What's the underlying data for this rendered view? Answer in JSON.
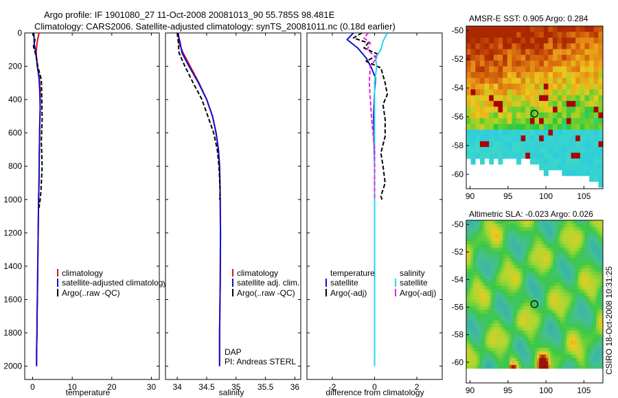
{
  "header": {
    "line1": "Argo profile: IF 1901080_27 11-Oct-2008 20081013_90 55.785S 98.481E",
    "line2": "Climatology: CARS2006. Satellite-adjusted climatology: synTS_20081011.nc (0.18d earlier)"
  },
  "timestamp": "CSIRO 18-Oct-2008 10:31:25",
  "colors": {
    "climatology": "#e01010",
    "satellite": "#1010d0",
    "argo": "#000000",
    "cyan": "#20d8e8",
    "magenta": "#e020e0"
  },
  "chart_data": [
    {
      "type": "line",
      "id": "temperature",
      "xlabel": "temperature",
      "ylabel": "",
      "xlim": [
        -2,
        32
      ],
      "ylim": [
        2080,
        0
      ],
      "xticks": [
        0,
        10,
        20,
        30
      ],
      "yticks": [
        0,
        200,
        400,
        600,
        800,
        1000,
        1200,
        1400,
        1600,
        1800,
        2000
      ],
      "legend": [
        "climatology",
        "satellite-adjusted climatology",
        "Argo(..raw -QC)"
      ],
      "series": [
        {
          "name": "climatology",
          "color": "#e01010",
          "dash": "",
          "x": [
            1.6,
            1.1,
            0.9,
            1.2,
            1.7,
            1.9,
            1.9,
            1.8,
            1.7,
            1.6,
            1.5,
            1.4,
            1.3,
            1.2,
            1.1,
            1.1,
            1.0,
            1.0
          ],
          "y": [
            0,
            60,
            120,
            200,
            270,
            350,
            450,
            550,
            700,
            900,
            1000,
            1200,
            1400,
            1600,
            1700,
            1800,
            1900,
            2000
          ]
        },
        {
          "name": "satellite",
          "color": "#1010d0",
          "dash": "",
          "x": [
            0.3,
            0.4,
            0.8,
            1.2,
            1.6,
            1.8,
            1.9,
            1.8,
            1.7,
            1.6,
            1.5,
            1.4,
            1.3,
            1.2,
            1.1,
            1.1,
            1.0,
            1.0
          ],
          "y": [
            0,
            60,
            120,
            200,
            270,
            350,
            450,
            550,
            700,
            900,
            1000,
            1200,
            1400,
            1600,
            1700,
            1800,
            1900,
            2000
          ]
        },
        {
          "name": "Argo",
          "color": "#000000",
          "dash": "6,3",
          "x": [
            0.1,
            0.6,
            0.2,
            0.9,
            1.3,
            2.2,
            2.3,
            2.4,
            2.2,
            2.4,
            2.1,
            1.9,
            1.6
          ],
          "y": [
            0,
            40,
            80,
            140,
            200,
            280,
            380,
            520,
            650,
            800,
            950,
            1000,
            1050
          ]
        }
      ],
      "annotations": []
    },
    {
      "type": "line",
      "id": "salinity",
      "xlabel": "salinity",
      "ylabel": "",
      "xlim": [
        33.8,
        36.1
      ],
      "ylim": [
        2080,
        0
      ],
      "xticks": [
        34,
        34.5,
        35,
        35.5,
        36
      ],
      "legend": [
        "climatology",
        "satellite adj. clim.",
        "Argo(..raw -QC)"
      ],
      "series": [
        {
          "name": "climatology",
          "color": "#e01010",
          "dash": "",
          "x": [
            34.02,
            34.03,
            34.1,
            34.22,
            34.37,
            34.5,
            34.6,
            34.66,
            34.7,
            34.72,
            34.73,
            34.735,
            34.73,
            34.72,
            34.72
          ],
          "y": [
            0,
            60,
            120,
            200,
            300,
            400,
            500,
            600,
            700,
            800,
            1000,
            1200,
            1500,
            1800,
            2000
          ]
        },
        {
          "name": "satellite",
          "color": "#1010d0",
          "dash": "",
          "x": [
            34.01,
            34.05,
            34.08,
            34.2,
            34.36,
            34.5,
            34.6,
            34.66,
            34.7,
            34.72,
            34.73,
            34.735,
            34.73,
            34.72,
            34.72
          ],
          "y": [
            0,
            60,
            120,
            200,
            300,
            400,
            500,
            600,
            700,
            800,
            1000,
            1200,
            1500,
            1800,
            2000
          ]
        },
        {
          "name": "Argo",
          "color": "#000000",
          "dash": "6,3",
          "x": [
            34.0,
            34.02,
            34.03,
            34.13,
            34.27,
            34.42,
            34.52,
            34.62,
            34.68,
            34.71,
            34.73,
            34.72
          ],
          "y": [
            0,
            60,
            120,
            200,
            300,
            400,
            500,
            600,
            700,
            800,
            950,
            1000
          ]
        }
      ],
      "annotations": [
        "DAP",
        "PI: Andreas STERL"
      ]
    },
    {
      "type": "line",
      "id": "difference",
      "xlabel": "difference from climatology",
      "ylabel": "",
      "xlim": [
        -3.2,
        3.2
      ],
      "ylim": [
        2080,
        0
      ],
      "xticks": [
        -2,
        0,
        2
      ],
      "legend_groups": [
        {
          "title": "temperature",
          "items": [
            "satellite",
            "Argo(-adj)"
          ]
        },
        {
          "title": "salinity",
          "items": [
            "satellite",
            "Argo(-adj)"
          ]
        }
      ],
      "series": [
        {
          "name": "temperature satellite",
          "color": "#1010d0",
          "dash": "",
          "x": [
            -1.0,
            -1.3,
            -0.8,
            -0.4,
            -0.15,
            0.05,
            0.0,
            -0.05,
            0.0,
            0.0,
            0.0,
            0.0
          ],
          "y": [
            0,
            40,
            90,
            150,
            210,
            270,
            350,
            500,
            800,
            1200,
            1600,
            2000
          ]
        },
        {
          "name": "temperature Argo(-adj)",
          "color": "#000000",
          "dash": "6,3",
          "x": [
            -0.6,
            -1.0,
            -0.3,
            -0.5,
            0.2,
            -0.4,
            0.3,
            0.5,
            0.6,
            0.4,
            0.5,
            0.5,
            0.3,
            0.4,
            0.5,
            0.3,
            0.35
          ],
          "y": [
            0,
            30,
            60,
            90,
            130,
            170,
            210,
            300,
            370,
            430,
            520,
            620,
            720,
            800,
            900,
            980,
            1000
          ]
        },
        {
          "name": "salinity satellite",
          "color": "#20d8e8",
          "dash": "",
          "x": [
            0.6,
            0.4,
            0.3,
            0.05,
            0.1,
            0.0,
            0.0,
            0.0,
            0.0,
            0.0,
            0.0
          ],
          "y": [
            0,
            50,
            100,
            150,
            200,
            300,
            500,
            800,
            1200,
            1600,
            2000
          ]
        },
        {
          "name": "salinity Argo(-adj)",
          "color": "#e020e0",
          "dash": "6,3",
          "x": [
            -0.3,
            -0.5,
            -0.2,
            -0.35,
            0.1,
            -0.2,
            -0.25,
            -0.2,
            -0.15,
            0.0,
            0.0
          ],
          "y": [
            0,
            30,
            60,
            100,
            150,
            200,
            300,
            400,
            500,
            700,
            1000
          ]
        }
      ],
      "annotations": []
    },
    {
      "type": "heatmap",
      "id": "sst",
      "title": "AMSR-E SST: 0.905 Argo: 0.284",
      "xlim": [
        89.5,
        107.5
      ],
      "ylim": [
        -61,
        -49.7
      ],
      "xticks": [
        90,
        95,
        100,
        105
      ],
      "yticks": [
        -50,
        -52,
        -54,
        -56,
        -58,
        -60
      ],
      "marker": {
        "lon": 98.481,
        "lat": -55.785
      }
    },
    {
      "type": "heatmap",
      "id": "sla",
      "title": "Altimetric SLA: -0.023 Argo: 0.026",
      "xlim": [
        89.5,
        107.5
      ],
      "ylim": [
        -61.5,
        -49.7
      ],
      "xticks": [
        90,
        95,
        100,
        105
      ],
      "yticks": [
        -50,
        -52,
        -54,
        -56,
        -58,
        -60
      ],
      "marker": {
        "lon": 98.481,
        "lat": -55.785
      }
    }
  ]
}
